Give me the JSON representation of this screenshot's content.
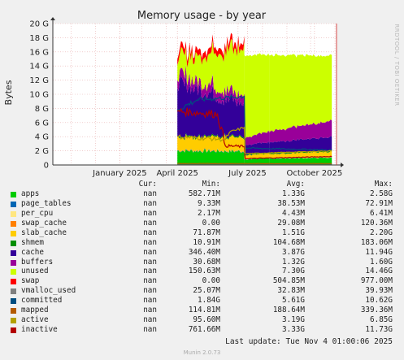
{
  "chart_data": {
    "type": "area",
    "title": "Memory usage - by year",
    "ylabel": "Bytes",
    "side_label": "RRDTOOL / TOBI OETIKER",
    "ylim": [
      0,
      20
    ],
    "yticks": [
      "0",
      "2 G",
      "4 G",
      "6 G",
      "8 G",
      "10 G",
      "12 G",
      "14 G",
      "16 G",
      "18 G",
      "20 G"
    ],
    "xlim": [
      "2024-11-08",
      "2025-11-04"
    ],
    "xticks": [
      {
        "label": "January 2025",
        "date": "2025-02-01"
      },
      {
        "label": "April 2025",
        "date": "2025-04-15"
      },
      {
        "label": "July 2025",
        "date": "2025-07-13"
      },
      {
        "label": "October 2025",
        "date": "2025-10-06"
      }
    ],
    "grid": true,
    "series": [
      {
        "name": "apps",
        "color": "#00cc00",
        "cur": "nan",
        "min": "582.71M",
        "avg": "1.33G",
        "max": "2.58G"
      },
      {
        "name": "page_tables",
        "color": "#0066b3",
        "cur": "nan",
        "min": "9.33M",
        "avg": "38.53M",
        "max": "72.91M"
      },
      {
        "name": "per_cpu",
        "color": "#ffe680",
        "cur": "nan",
        "min": "2.17M",
        "avg": "4.43M",
        "max": "6.41M"
      },
      {
        "name": "swap_cache",
        "color": "#ff8000",
        "cur": "nan",
        "min": "0.00",
        "avg": "29.08M",
        "max": "120.36M"
      },
      {
        "name": "slab_cache",
        "color": "#ffcc00",
        "cur": "nan",
        "min": "71.87M",
        "avg": "1.51G",
        "max": "2.20G"
      },
      {
        "name": "shmem",
        "color": "#008f00",
        "cur": "nan",
        "min": "10.91M",
        "avg": "104.68M",
        "max": "183.06M"
      },
      {
        "name": "cache",
        "color": "#330099",
        "cur": "nan",
        "min": "346.40M",
        "avg": "3.87G",
        "max": "11.94G"
      },
      {
        "name": "buffers",
        "color": "#990099",
        "cur": "nan",
        "min": "30.68M",
        "avg": "1.32G",
        "max": "1.60G"
      },
      {
        "name": "unused",
        "color": "#ccff00",
        "cur": "nan",
        "min": "150.63M",
        "avg": "7.30G",
        "max": "14.46G"
      },
      {
        "name": "swap",
        "color": "#ff0000",
        "cur": "nan",
        "min": "0.00",
        "avg": "504.85M",
        "max": "977.00M"
      },
      {
        "name": "vmalloc_used",
        "color": "#808080",
        "cur": "nan",
        "min": "25.07M",
        "avg": "32.83M",
        "max": "39.93M"
      },
      {
        "name": "committed",
        "color": "#004d80",
        "cur": "nan",
        "min": "1.84G",
        "avg": "5.61G",
        "max": "10.62G"
      },
      {
        "name": "mapped",
        "color": "#b35a00",
        "cur": "nan",
        "min": "114.81M",
        "avg": "188.64M",
        "max": "339.36M"
      },
      {
        "name": "active",
        "color": "#b3a000",
        "cur": "nan",
        "min": "95.60M",
        "avg": "3.19G",
        "max": "6.85G"
      },
      {
        "name": "inactive",
        "color": "#b30000",
        "cur": "nan",
        "min": "761.66M",
        "avg": "3.33G",
        "max": "11.73G"
      }
    ]
  },
  "legend_headers": {
    "cur": "Cur:",
    "min": "Min:",
    "avg": "Avg:",
    "max": "Max:"
  },
  "last_update": "Last update: Tue Nov  4 01:00:06 2025",
  "footer": "Munin 2.0.73"
}
